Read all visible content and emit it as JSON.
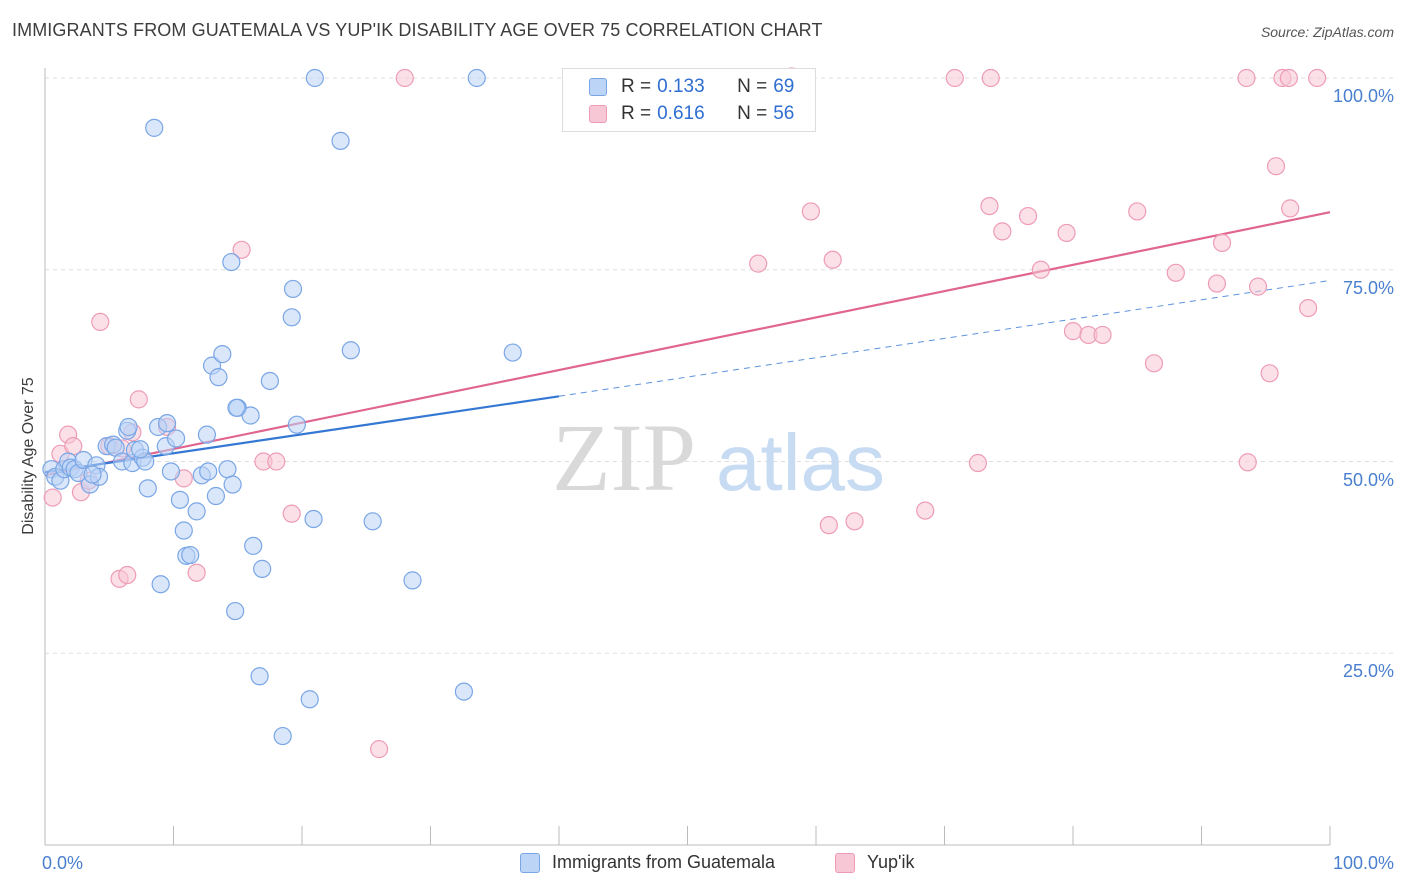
{
  "title": "IMMIGRANTS FROM GUATEMALA VS YUP'IK DISABILITY AGE OVER 75 CORRELATION CHART",
  "source": "Source: ZipAtlas.com",
  "watermark": {
    "zip": "ZIP",
    "atlas": "atlas"
  },
  "legend": {
    "rows": [
      {
        "r_label": "R = ",
        "r_value": "0.133",
        "n_label": "N = ",
        "n_value": "69"
      },
      {
        "r_label": "R = ",
        "r_value": "0.616",
        "n_label": "N = ",
        "n_value": "56"
      }
    ]
  },
  "colors": {
    "blue_fill": "#bcd4f5",
    "blue_stroke": "#7aa6e6",
    "blue_line": "#3578d4",
    "pink_fill": "#f8c7d6",
    "pink_stroke": "#ee9cb6",
    "pink_line": "#e0668f",
    "tick_label": "#4a7fd0",
    "grid": "#dddddd"
  },
  "chart_data": {
    "type": "scatter",
    "title": "IMMIGRANTS FROM GUATEMALA VS YUP'IK DISABILITY AGE OVER 75 CORRELATION CHART",
    "xlabel": "",
    "ylabel": "Disability Age Over 75",
    "xlim": [
      0,
      100
    ],
    "ylim": [
      0,
      100
    ],
    "x_tick_labels": [
      "0.0%",
      "100.0%"
    ],
    "y_tick_labels": [
      "25.0%",
      "50.0%",
      "75.0%",
      "100.0%"
    ],
    "y_ticks": [
      25,
      50,
      75,
      100
    ],
    "grid": true,
    "legend_position": "top-center",
    "series": [
      {
        "name": "Immigrants from Guatemala",
        "color": "#7aa6e6",
        "trend": {
          "x": [
            0,
            40
          ],
          "y": [
            48.6,
            58.5
          ],
          "dashed_to": [
            100,
            73.6
          ]
        },
        "points": [
          [
            0.5,
            49
          ],
          [
            0.8,
            48
          ],
          [
            1.2,
            47.5
          ],
          [
            1.5,
            49
          ],
          [
            1.8,
            50
          ],
          [
            2.0,
            49.2
          ],
          [
            2.3,
            49
          ],
          [
            2.6,
            48.5
          ],
          [
            3.0,
            50.2
          ],
          [
            3.5,
            47
          ],
          [
            4.0,
            49.5
          ],
          [
            4.2,
            48
          ],
          [
            4.8,
            52
          ],
          [
            5.3,
            52.2
          ],
          [
            5.5,
            51.8
          ],
          [
            6.0,
            50
          ],
          [
            6.4,
            54
          ],
          [
            6.5,
            54.5
          ],
          [
            6.8,
            49.8
          ],
          [
            7.0,
            51.5
          ],
          [
            7.6,
            50.5
          ],
          [
            7.8,
            50
          ],
          [
            8.0,
            46.5
          ],
          [
            8.5,
            93.5
          ],
          [
            8.8,
            54.5
          ],
          [
            9.0,
            34
          ],
          [
            9.4,
            52
          ],
          [
            9.5,
            55
          ],
          [
            9.8,
            48.7
          ],
          [
            10.2,
            53
          ],
          [
            10.5,
            45
          ],
          [
            10.8,
            41
          ],
          [
            11.0,
            37.7
          ],
          [
            11.3,
            37.8
          ],
          [
            11.8,
            43.5
          ],
          [
            12.2,
            48.2
          ],
          [
            12.6,
            53.5
          ],
          [
            13.0,
            62.5
          ],
          [
            13.3,
            45.5
          ],
          [
            13.5,
            61
          ],
          [
            13.8,
            64
          ],
          [
            14.2,
            49
          ],
          [
            14.6,
            47
          ],
          [
            14.8,
            30.5
          ],
          [
            14.5,
            76
          ],
          [
            15.0,
            57
          ],
          [
            16.0,
            56
          ],
          [
            16.2,
            39
          ],
          [
            16.7,
            22
          ],
          [
            16.9,
            36
          ],
          [
            17.5,
            60.5
          ],
          [
            18.5,
            14.2
          ],
          [
            19.3,
            72.5
          ],
          [
            19.2,
            68.8
          ],
          [
            19.6,
            54.8
          ],
          [
            20.6,
            19
          ],
          [
            21.0,
            100
          ],
          [
            20.9,
            42.5
          ],
          [
            23.0,
            91.8
          ],
          [
            23.8,
            64.5
          ],
          [
            25.5,
            42.2
          ],
          [
            28.6,
            34.5
          ],
          [
            32.6,
            20
          ],
          [
            33.6,
            100
          ],
          [
            36.4,
            64.2
          ],
          [
            14.9,
            57
          ],
          [
            12.7,
            48.7
          ],
          [
            7.4,
            51.6
          ],
          [
            3.7,
            48.3
          ]
        ]
      },
      {
        "name": "Yup'ik",
        "color": "#ee9cb6",
        "trend": {
          "x": [
            0,
            100
          ],
          "y": [
            48.2,
            82.5
          ]
        },
        "points": [
          [
            0.6,
            45.3
          ],
          [
            1.2,
            51
          ],
          [
            1.8,
            53.5
          ],
          [
            2.2,
            52
          ],
          [
            2.8,
            46
          ],
          [
            3.4,
            47.5
          ],
          [
            4.3,
            68.2
          ],
          [
            5.0,
            52
          ],
          [
            5.8,
            34.7
          ],
          [
            6.0,
            51.7
          ],
          [
            6.4,
            35.2
          ],
          [
            6.8,
            53.8
          ],
          [
            7.3,
            58.1
          ],
          [
            9.5,
            54.5
          ],
          [
            10.8,
            47.8
          ],
          [
            11.8,
            35.5
          ],
          [
            15.3,
            77.6
          ],
          [
            17.0,
            50
          ],
          [
            18.0,
            50
          ],
          [
            19.2,
            43.2
          ],
          [
            26.0,
            12.5
          ],
          [
            28.0,
            100
          ],
          [
            58.3,
            100
          ],
          [
            58.1,
            100.2
          ],
          [
            55.5,
            75.8
          ],
          [
            59.6,
            82.6
          ],
          [
            61.3,
            76.3
          ],
          [
            61.0,
            41.7
          ],
          [
            63.0,
            42.2
          ],
          [
            68.5,
            43.6
          ],
          [
            70.8,
            100
          ],
          [
            72.6,
            49.8
          ],
          [
            73.5,
            83.3
          ],
          [
            73.6,
            100
          ],
          [
            74.5,
            80
          ],
          [
            76.5,
            82
          ],
          [
            77.5,
            75
          ],
          [
            79.5,
            79.8
          ],
          [
            80.0,
            67
          ],
          [
            81.2,
            66.5
          ],
          [
            82.3,
            66.5
          ],
          [
            85.0,
            82.6
          ],
          [
            86.3,
            62.8
          ],
          [
            88.0,
            74.6
          ],
          [
            91.2,
            73.2
          ],
          [
            91.6,
            78.5
          ],
          [
            93.5,
            100
          ],
          [
            93.6,
            49.9
          ],
          [
            94.4,
            72.8
          ],
          [
            95.3,
            61.5
          ],
          [
            95.8,
            88.5
          ],
          [
            96.3,
            100
          ],
          [
            96.8,
            100
          ],
          [
            96.9,
            83
          ],
          [
            98.3,
            70
          ],
          [
            99.0,
            100
          ]
        ]
      }
    ]
  },
  "bottom_legend": [
    {
      "label": "Immigrants from Guatemala"
    },
    {
      "label": "Yup'ik"
    }
  ]
}
